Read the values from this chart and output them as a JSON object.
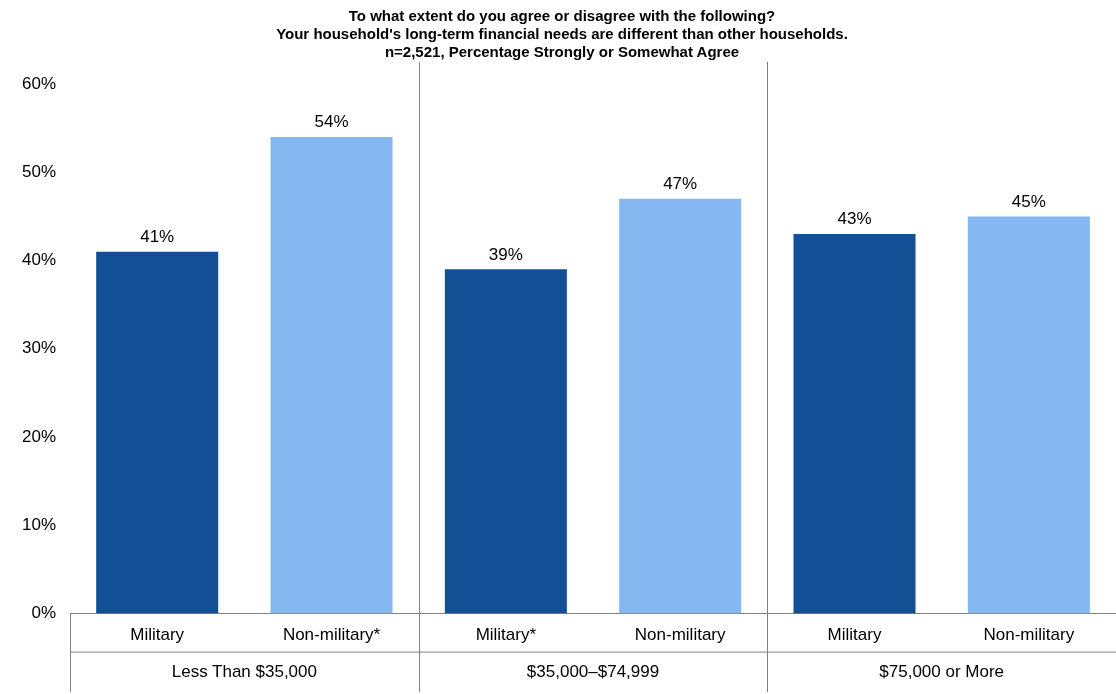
{
  "chart_data": {
    "type": "bar",
    "title": [
      "To what extent do you agree or disagree with the following?",
      "Your household's long-term financial needs are different than other households.",
      "n=2,521, Percentage Strongly or Somewhat Agree"
    ],
    "categories": [
      "Military",
      "Non-military*",
      "Military*",
      "Non-military",
      "Military",
      "Non-military"
    ],
    "values": [
      41,
      54,
      39,
      47,
      43,
      45
    ],
    "colors": [
      "#124f94",
      "#85b8f0",
      "#124f94",
      "#85b8f0",
      "#124f94",
      "#85b8f0"
    ],
    "ylim": [
      0,
      60
    ],
    "yticks": [
      {
        "value": 0,
        "label": "0%"
      },
      {
        "value": 10,
        "label": "10%"
      },
      {
        "value": 20,
        "label": "20%"
      },
      {
        "value": 30,
        "label": "30%"
      },
      {
        "value": 40,
        "label": "40%"
      },
      {
        "value": 50,
        "label": "50%"
      },
      {
        "value": 60,
        "label": "60%"
      }
    ],
    "value_labels": [
      "41%",
      "54%",
      "39%",
      "47%",
      "43%",
      "45%"
    ],
    "annotations": [
      "Less Than $35,000",
      "$35,000–$74,999",
      "$75,000 or More"
    ],
    "grid": false,
    "legend": false
  }
}
